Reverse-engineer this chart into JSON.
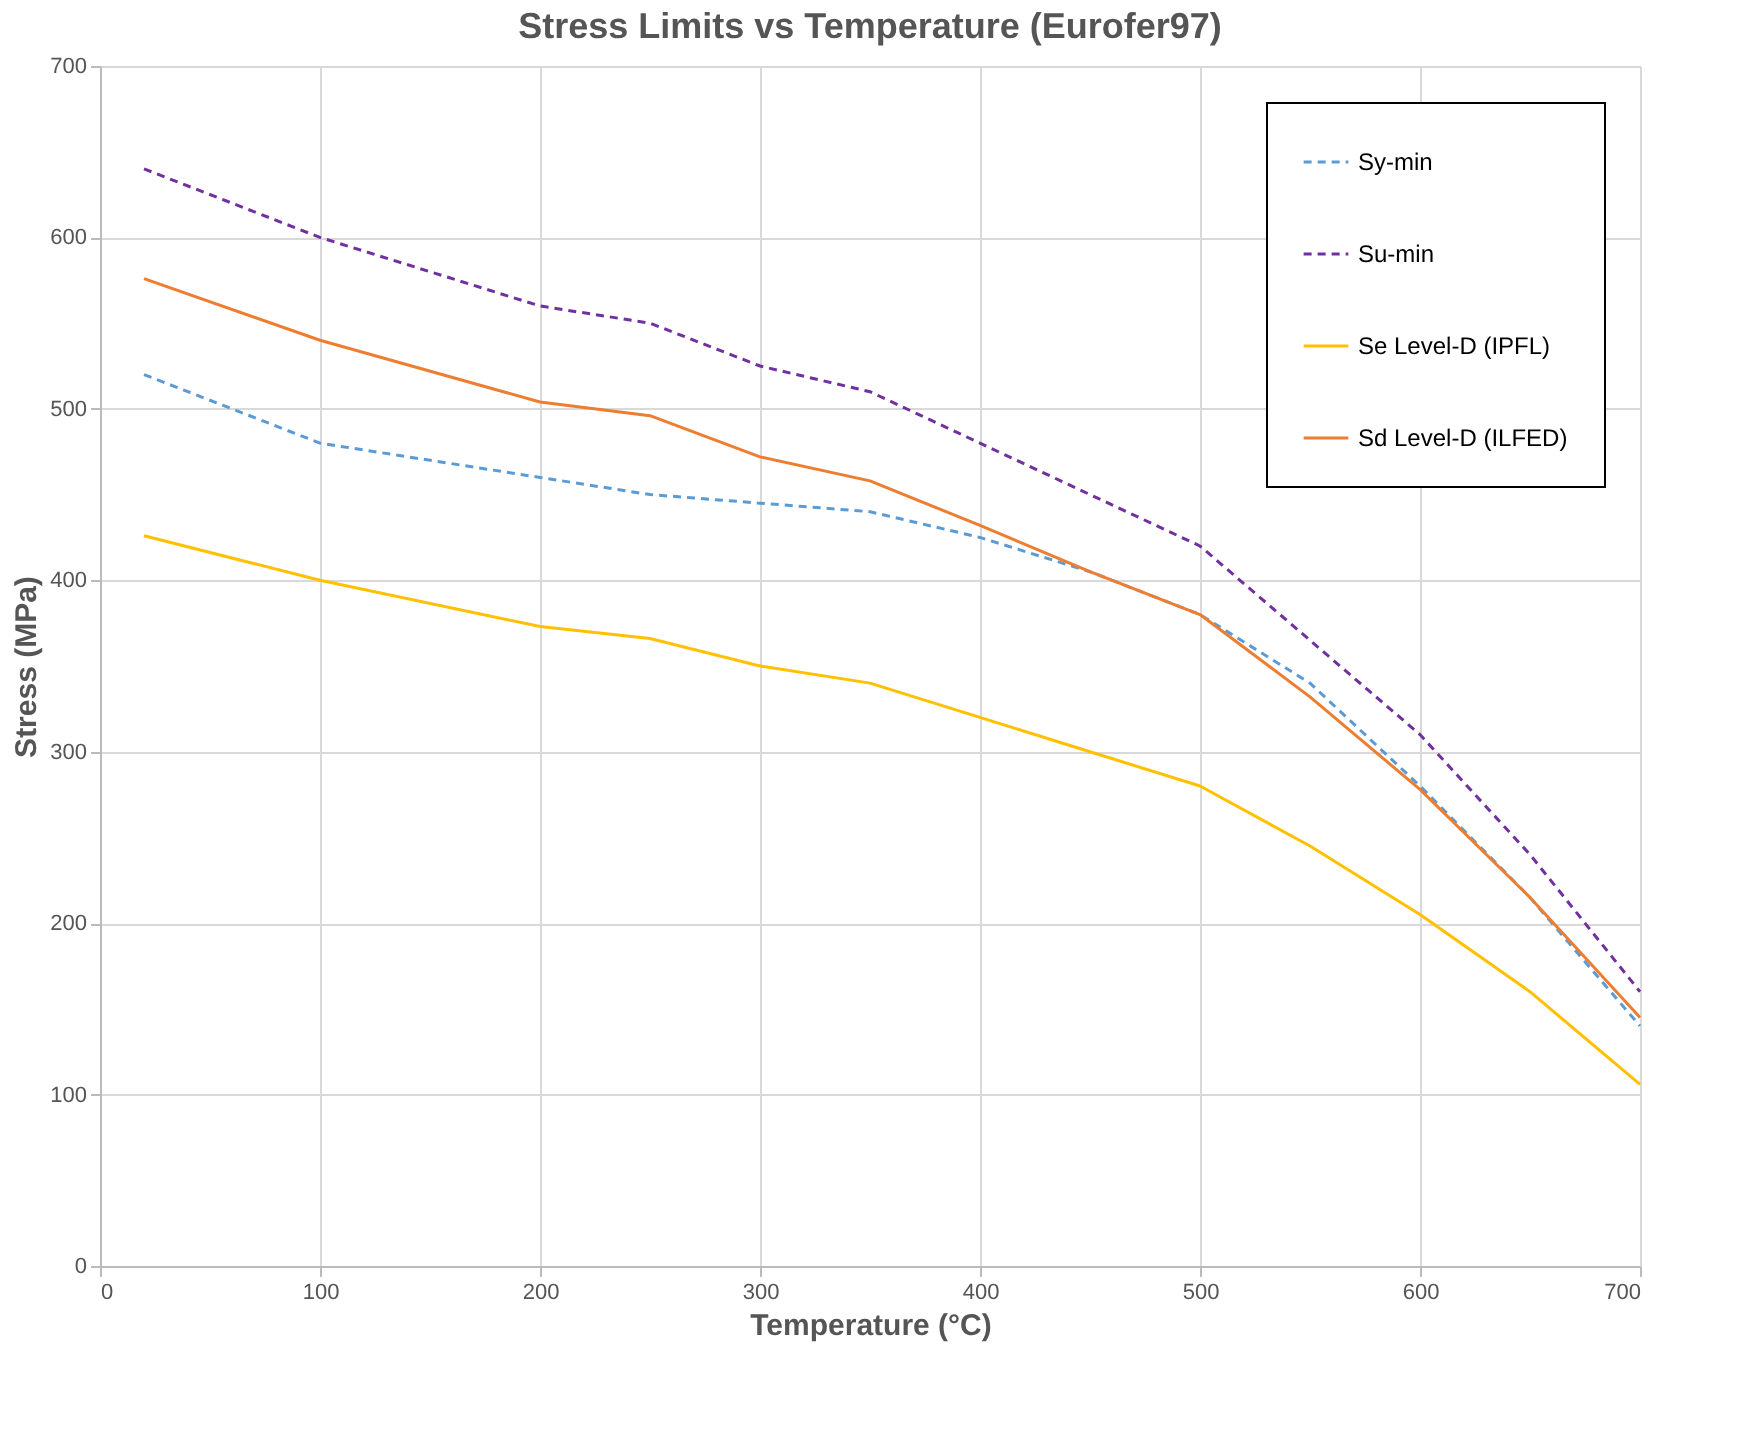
{
  "chart_data": {
    "type": "line",
    "title": "Stress Limits vs Temperature (Eurofer97)",
    "xlabel": "Temperature (°C)",
    "ylabel": "Stress (MPa)",
    "x": [
      20,
      100,
      200,
      250,
      300,
      350,
      400,
      450,
      500,
      550,
      600,
      650,
      700
    ],
    "series": [
      {
        "name": "Sy-min",
        "color": "#5b9bd5",
        "line_style": "dashed",
        "values": [
          520,
          480,
          460,
          450,
          445,
          440,
          425,
          405,
          380,
          340,
          280,
          215,
          140
        ]
      },
      {
        "name": "Su-min",
        "color": "#7030a0",
        "line_style": "dashed",
        "values": [
          640,
          600,
          560,
          550,
          525,
          510,
          480,
          450,
          420,
          365,
          310,
          240,
          160
        ]
      },
      {
        "name": "Se Level-D (IPFL)",
        "color": "#ffc000",
        "line_style": "solid",
        "values": [
          426,
          400,
          373,
          366,
          350,
          340,
          320,
          300,
          280,
          245,
          205,
          160,
          106
        ]
      },
      {
        "name": "Sd Level-D (ILFED)",
        "color": "#ed7d31",
        "line_style": "solid",
        "values": [
          576,
          540,
          504,
          496,
          472,
          458,
          432,
          405,
          380,
          332,
          278,
          215,
          145
        ]
      }
    ],
    "xlim": [
      0,
      700
    ],
    "xticks": [
      0,
      100,
      200,
      300,
      400,
      500,
      600,
      700
    ],
    "ylim": [
      0,
      700
    ],
    "yticks": [
      0,
      100,
      200,
      300,
      400,
      500,
      600,
      700
    ],
    "grid": true,
    "legend": "top right",
    "marker": "none"
  }
}
